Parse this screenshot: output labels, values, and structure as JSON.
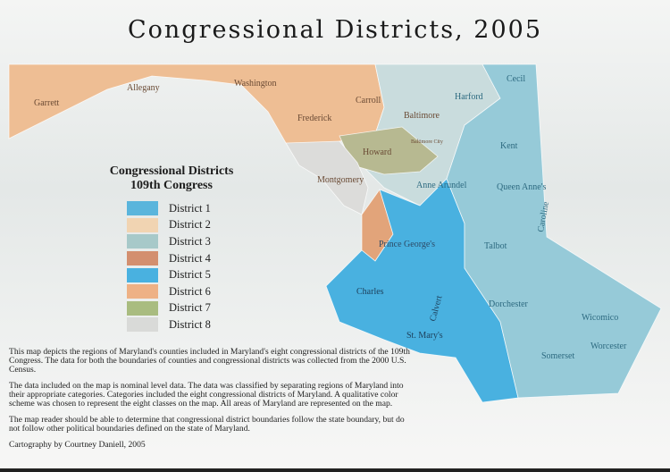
{
  "title": "Congressional Districts, 2005",
  "legend": {
    "title_line1": "Congressional Districts",
    "title_line2": "109th Congress",
    "items": [
      {
        "label": "District 1",
        "color": "#5ab5dc"
      },
      {
        "label": "District 2",
        "color": "#f1d4b2"
      },
      {
        "label": "District 3",
        "color": "#a7c9c9"
      },
      {
        "label": "District 4",
        "color": "#d38f6f"
      },
      {
        "label": "District 5",
        "color": "#49b1e0"
      },
      {
        "label": "District 6",
        "color": "#eeb185"
      },
      {
        "label": "District 7",
        "color": "#a9bc80"
      },
      {
        "label": "District 8",
        "color": "#d9dad8"
      }
    ]
  },
  "counties": [
    "Garrett",
    "Allegany",
    "Washington",
    "Frederick",
    "Carroll",
    "Baltimore",
    "Harford",
    "Cecil",
    "Howard",
    "Baltimore City",
    "Montgomery",
    "Anne Arundel",
    "Kent",
    "Queen Anne's",
    "Caroline",
    "Prince George's",
    "Talbot",
    "Charles",
    "Calvert",
    "St. Mary's",
    "Dorchester",
    "Wicomico",
    "Worcester",
    "Somerset"
  ],
  "notes": [
    "This map depicts the regions of Maryland's counties included in Maryland's eight congressional districts of the 109th Congress.  The data for both the boundaries of counties and congressional districts was collected from the 2000 U.S. Census.",
    "The data included on the map is nominal level data.  The data was classified by separating regions of Maryland into their appropriate categories.  Categories included the eight congressional districts of Maryland.  A qualitative color  scheme was chosen to represent the eight classes on the map.  All areas of Maryland are represented on the map.",
    "The map reader should be able to determine that congressional district boundaries follow the state boundary, but do not follow other political boundaries defined on the state of Maryland.",
    "Cartography by Courtney Daniell, 2005"
  ]
}
